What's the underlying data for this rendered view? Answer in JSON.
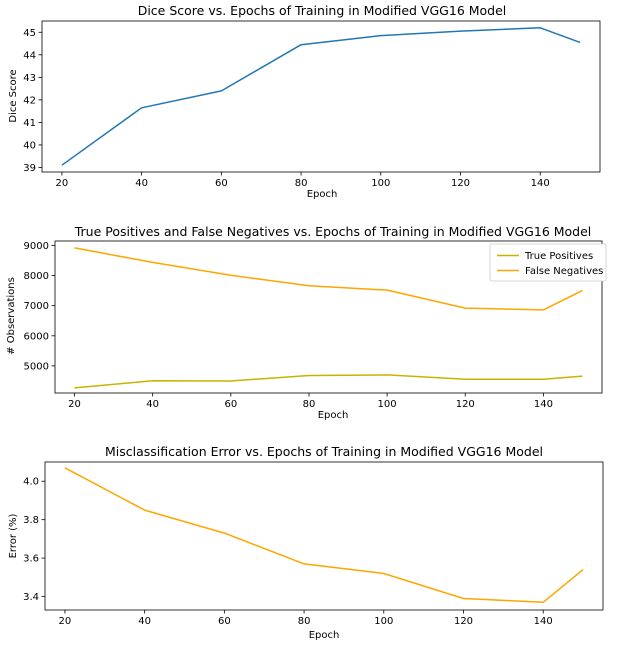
{
  "chart_data": [
    {
      "type": "line",
      "title": "Dice Score vs. Epochs of Training in Modified VGG16 Model",
      "xlabel": "Epoch",
      "ylabel": "Dice Score",
      "x": [
        20,
        40,
        60,
        80,
        100,
        120,
        140,
        150
      ],
      "xlim": [
        15,
        155
      ],
      "ylim": [
        38.8,
        45.5
      ],
      "xticks": [
        20,
        40,
        60,
        80,
        100,
        120,
        140
      ],
      "yticks": [
        39,
        40,
        41,
        42,
        43,
        44,
        45
      ],
      "grid": false,
      "series": [
        {
          "values": [
            39.1,
            41.65,
            42.4,
            44.45,
            44.85,
            45.05,
            45.2,
            44.55
          ],
          "color": "#1f77b4"
        }
      ]
    },
    {
      "type": "line",
      "title": "True Positives and False Negatives vs. Epochs of Training in Modified VGG16 Model",
      "xlabel": "Epoch",
      "ylabel": "# Observations",
      "x": [
        20,
        40,
        60,
        80,
        100,
        120,
        140,
        150
      ],
      "xlim": [
        15,
        155
      ],
      "ylim": [
        4100,
        9150
      ],
      "xticks": [
        20,
        40,
        60,
        80,
        100,
        120,
        140
      ],
      "yticks": [
        5000,
        6000,
        7000,
        8000,
        9000
      ],
      "grid": false,
      "legend": "top-right",
      "series": [
        {
          "name": "True Positives",
          "values": [
            4270,
            4510,
            4500,
            4680,
            4700,
            4560,
            4560,
            4660
          ],
          "color": "#c8b400"
        },
        {
          "name": "False Negatives",
          "values": [
            8920,
            8440,
            8010,
            7660,
            7520,
            6920,
            6860,
            7510
          ],
          "color": "#ffa500"
        }
      ]
    },
    {
      "type": "line",
      "title": "Misclassification Error vs. Epochs of Training in Modified VGG16 Model",
      "xlabel": "Epoch",
      "ylabel": "Error (%)",
      "x": [
        20,
        40,
        60,
        80,
        100,
        120,
        140,
        150
      ],
      "xlim": [
        15,
        155
      ],
      "ylim": [
        3.33,
        4.1
      ],
      "xticks": [
        20,
        40,
        60,
        80,
        100,
        120,
        140
      ],
      "yticks": [
        3.4,
        3.6,
        3.8,
        4.0
      ],
      "ytick_labels": [
        "3.4",
        "3.6",
        "3.8",
        "4.0"
      ],
      "grid": false,
      "series": [
        {
          "values": [
            4.07,
            3.85,
            3.73,
            3.57,
            3.52,
            3.39,
            3.37,
            3.54
          ],
          "color": "#ffa500"
        }
      ]
    }
  ]
}
